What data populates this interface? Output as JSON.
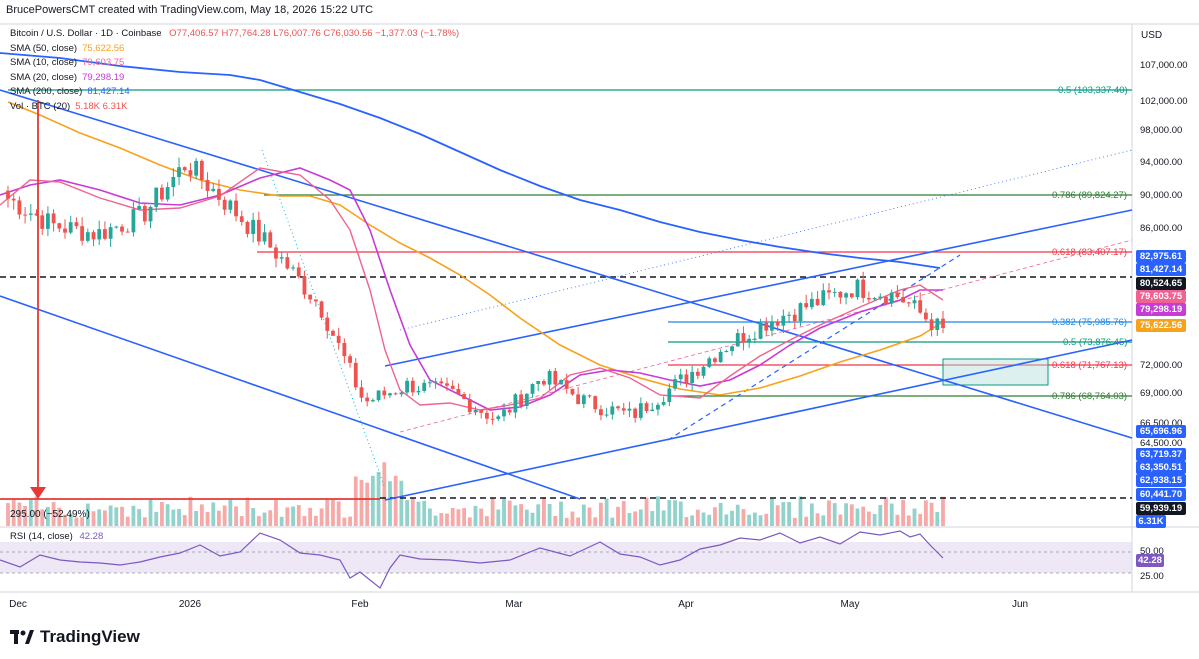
{
  "header": {
    "text": "BrucePowersCMT created with TradingView.com, May 18, 2026 15:22 UTC"
  },
  "legend": {
    "symbol": "Bitcoin / U.S. Dollar · 1D · Coinbase",
    "ohlc": "O77,406.57  H77,764.28  L76,007.76  C76,030.56  −1,377.03 (−1.78%)",
    "indicators": [
      {
        "label": "SMA (50, close)",
        "value": "75,622.56",
        "color": "#f7a21b"
      },
      {
        "label": "SMA (10, close)",
        "value": "79,603.75",
        "color": "#f06292"
      },
      {
        "label": "SMA (20, close)",
        "value": "79,298.19",
        "color": "#c73bd6"
      },
      {
        "label": "SMA (200, close)",
        "value": "81,427.14",
        "color": "#2962ff"
      },
      {
        "label": "Vol · BTC (20)",
        "value": "5.18K  6.31K",
        "color": "#ef5350"
      }
    ]
  },
  "currency": "USD",
  "price_axis": [
    "107,000.00",
    "102,000.00",
    "98,000.00",
    "94,000.00",
    "90,000.00",
    "86,000.00",
    "72,000.00",
    "69,000.00",
    "66,500.00",
    "64,500.00",
    "50.00",
    "25.00"
  ],
  "price_labels": [
    {
      "text": "82,975.61",
      "bg": "#2962ff"
    },
    {
      "text": "81,427.14",
      "bg": "#2962ff"
    },
    {
      "text": "80,524.65",
      "bg": "#131722"
    },
    {
      "text": "79,603.75",
      "bg": "#f06292"
    },
    {
      "text": "79,298.19",
      "bg": "#c73bd6"
    },
    {
      "text": "75,622.56",
      "bg": "#f7a21b"
    },
    {
      "text": "65,696.96",
      "bg": "#2962ff"
    },
    {
      "text": "63,719.37",
      "bg": "#2962ff"
    },
    {
      "text": "63,350.51",
      "bg": "#2962ff"
    },
    {
      "text": "62,938.15",
      "bg": "#2962ff"
    },
    {
      "text": "60,441.70",
      "bg": "#2962ff"
    },
    {
      "text": "59,939.19",
      "bg": "#131722"
    },
    {
      "text": "6.31K",
      "bg": "#2962ff"
    },
    {
      "text": "42.28",
      "bg": "#7e57c2"
    }
  ],
  "fib_labels": [
    {
      "text": "0.5 (103,337.40)",
      "color": "#089981"
    },
    {
      "text": "0.786 (89,824.27)",
      "color": "#2e7d32"
    },
    {
      "text": "0.618 (83,407.17)",
      "color": "#f23645"
    },
    {
      "text": "0.382 (75,985.76)",
      "color": "#1e88e5"
    },
    {
      "text": "0.5 (73,876.45)",
      "color": "#089981"
    },
    {
      "text": "0.618 (71,767.13)",
      "color": "#f23645"
    },
    {
      "text": "0.786 (68,764.03)",
      "color": "#2e7d32"
    }
  ],
  "pct_label": "295.00 (−52.49%)",
  "rsi_legend": {
    "label": "RSI (14, close)",
    "value": "42.28"
  },
  "date_axis": [
    "Dec",
    "2026",
    "Feb",
    "Mar",
    "Apr",
    "May",
    "Jun"
  ],
  "footer": {
    "brand": "TradingView"
  },
  "chart_data": {
    "type": "candlestick",
    "title": "Bitcoin / U.S. Dollar · 1D · Coinbase",
    "x_range": [
      "Dec 2025",
      "Jun 2026"
    ],
    "ylim": [
      57000,
      110000
    ],
    "series": [
      {
        "name": "BTC close (approx.)",
        "values": [
          91000,
          88000,
          87000,
          89000,
          95000,
          90000,
          85000,
          79000,
          68000,
          70000,
          69000,
          66000,
          71000,
          68000,
          66500,
          70000,
          74000,
          77000,
          79000,
          81000,
          80000,
          76030
        ]
      },
      {
        "name": "SMA (50, close)",
        "value": 75622.56
      },
      {
        "name": "SMA (10, close)",
        "value": 79603.75
      },
      {
        "name": "SMA (20, close)",
        "value": 79298.19
      },
      {
        "name": "SMA (200, close)",
        "value": 81427.14
      }
    ],
    "fib_levels": [
      {
        "ratio": 0.5,
        "price": 103337.4
      },
      {
        "ratio": 0.786,
        "price": 89824.27
      },
      {
        "ratio": 0.618,
        "price": 83407.17
      },
      {
        "ratio": 0.382,
        "price": 75985.76
      },
      {
        "ratio": 0.5,
        "price": 73876.45
      },
      {
        "ratio": 0.618,
        "price": 71767.13
      },
      {
        "ratio": 0.786,
        "price": 68764.03
      }
    ],
    "rsi": {
      "value": 42.28,
      "levels": [
        50,
        25
      ]
    },
    "volume": {
      "current": "5.18K",
      "average": "6.31K"
    },
    "colors": {
      "up": "#26a69a",
      "down": "#ef5350"
    }
  }
}
